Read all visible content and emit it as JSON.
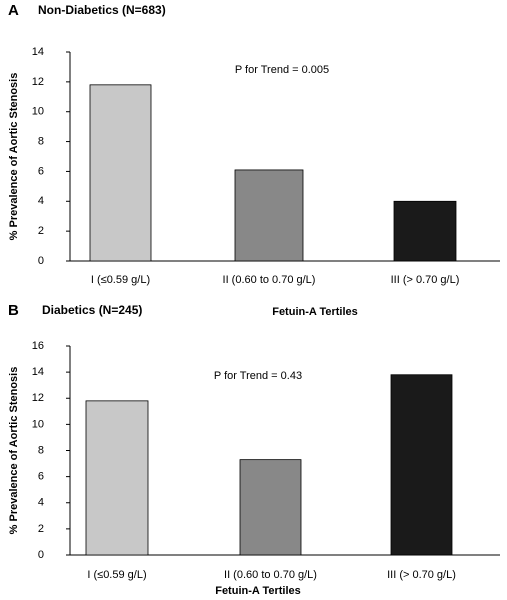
{
  "chart_data": [
    {
      "type": "bar",
      "panel_label": "A",
      "title": "Non-Diabetics (N=683)",
      "annotation": "P for Trend = 0.005",
      "ylabel": "% Prevalence of Aortic Stenosis",
      "xlabel": "Fetuin-A Tertiles",
      "categories": [
        "I (≤0.59 g/L)",
        "II (0.60 to 0.70 g/L)",
        "III (> 0.70 g/L)"
      ],
      "values": [
        11.8,
        6.1,
        4.0
      ],
      "colors": [
        "#c8c8c8",
        "#888888",
        "#1a1a1a"
      ],
      "ylim": [
        0,
        14
      ],
      "yticks": [
        0,
        2,
        4,
        6,
        8,
        10,
        12,
        14
      ],
      "grid": false
    },
    {
      "type": "bar",
      "panel_label": "B",
      "title": "Diabetics (N=245)",
      "annotation": "P for Trend = 0.43",
      "ylabel": "% Prevalence of Aortic Stenosis",
      "xlabel": "Fetuin-A Tertiles",
      "categories": [
        "I (≤0.59 g/L)",
        "II (0.60 to 0.70 g/L)",
        "III (> 0.70 g/L)"
      ],
      "values": [
        11.8,
        7.3,
        13.8
      ],
      "colors": [
        "#c8c8c8",
        "#888888",
        "#1a1a1a"
      ],
      "ylim": [
        0,
        16
      ],
      "yticks": [
        0,
        2,
        4,
        6,
        8,
        10,
        12,
        14,
        16
      ],
      "grid": false
    }
  ]
}
